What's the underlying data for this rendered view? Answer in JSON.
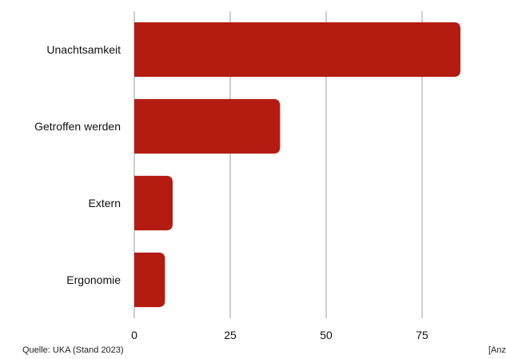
{
  "chart_data": {
    "type": "bar",
    "orientation": "horizontal",
    "categories": [
      "Unachtsamkeit",
      "Getroffen werden",
      "Extern",
      "Ergonomie"
    ],
    "values": [
      85,
      38,
      10,
      8
    ],
    "xlim": [
      0,
      100
    ],
    "xticks": [
      "0",
      "25",
      "50",
      "75"
    ],
    "grid": true,
    "legend": "none",
    "bar_color": "#b41c11",
    "grid_color": "#9e9e9e"
  },
  "footer": {
    "source": "Quelle: UKA (Stand 2023)",
    "note": "[Anz"
  }
}
